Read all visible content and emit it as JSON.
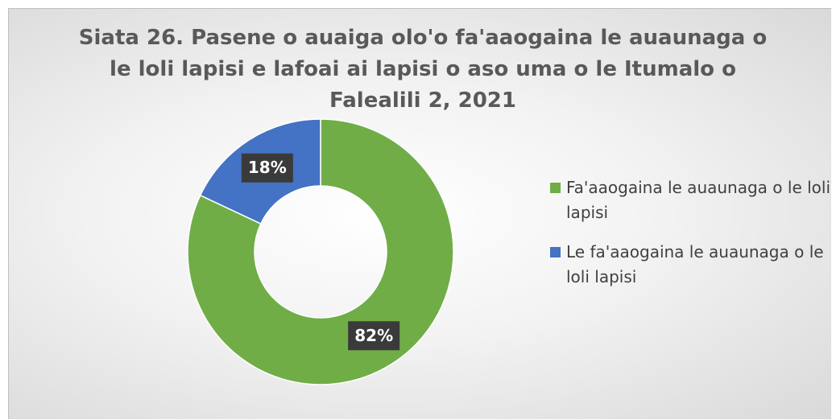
{
  "chart_data": {
    "type": "donut",
    "title": "Siata 26. Pasene o auaiga olo'o fa'aaogaina le auaunaga o le loli lapisi e lafoai ai lapisi o aso uma o le Itumalo o Falealili 2, 2021",
    "categories": [
      "Fa'aaogaina le auaunaga o le loli lapisi",
      "Le fa'aaogaina le auaunaga o le loli lapisi"
    ],
    "values": [
      82,
      18
    ],
    "value_labels": [
      "82%",
      "18%"
    ],
    "colors": [
      "#70ad47",
      "#4472c4"
    ],
    "legend": "right"
  }
}
